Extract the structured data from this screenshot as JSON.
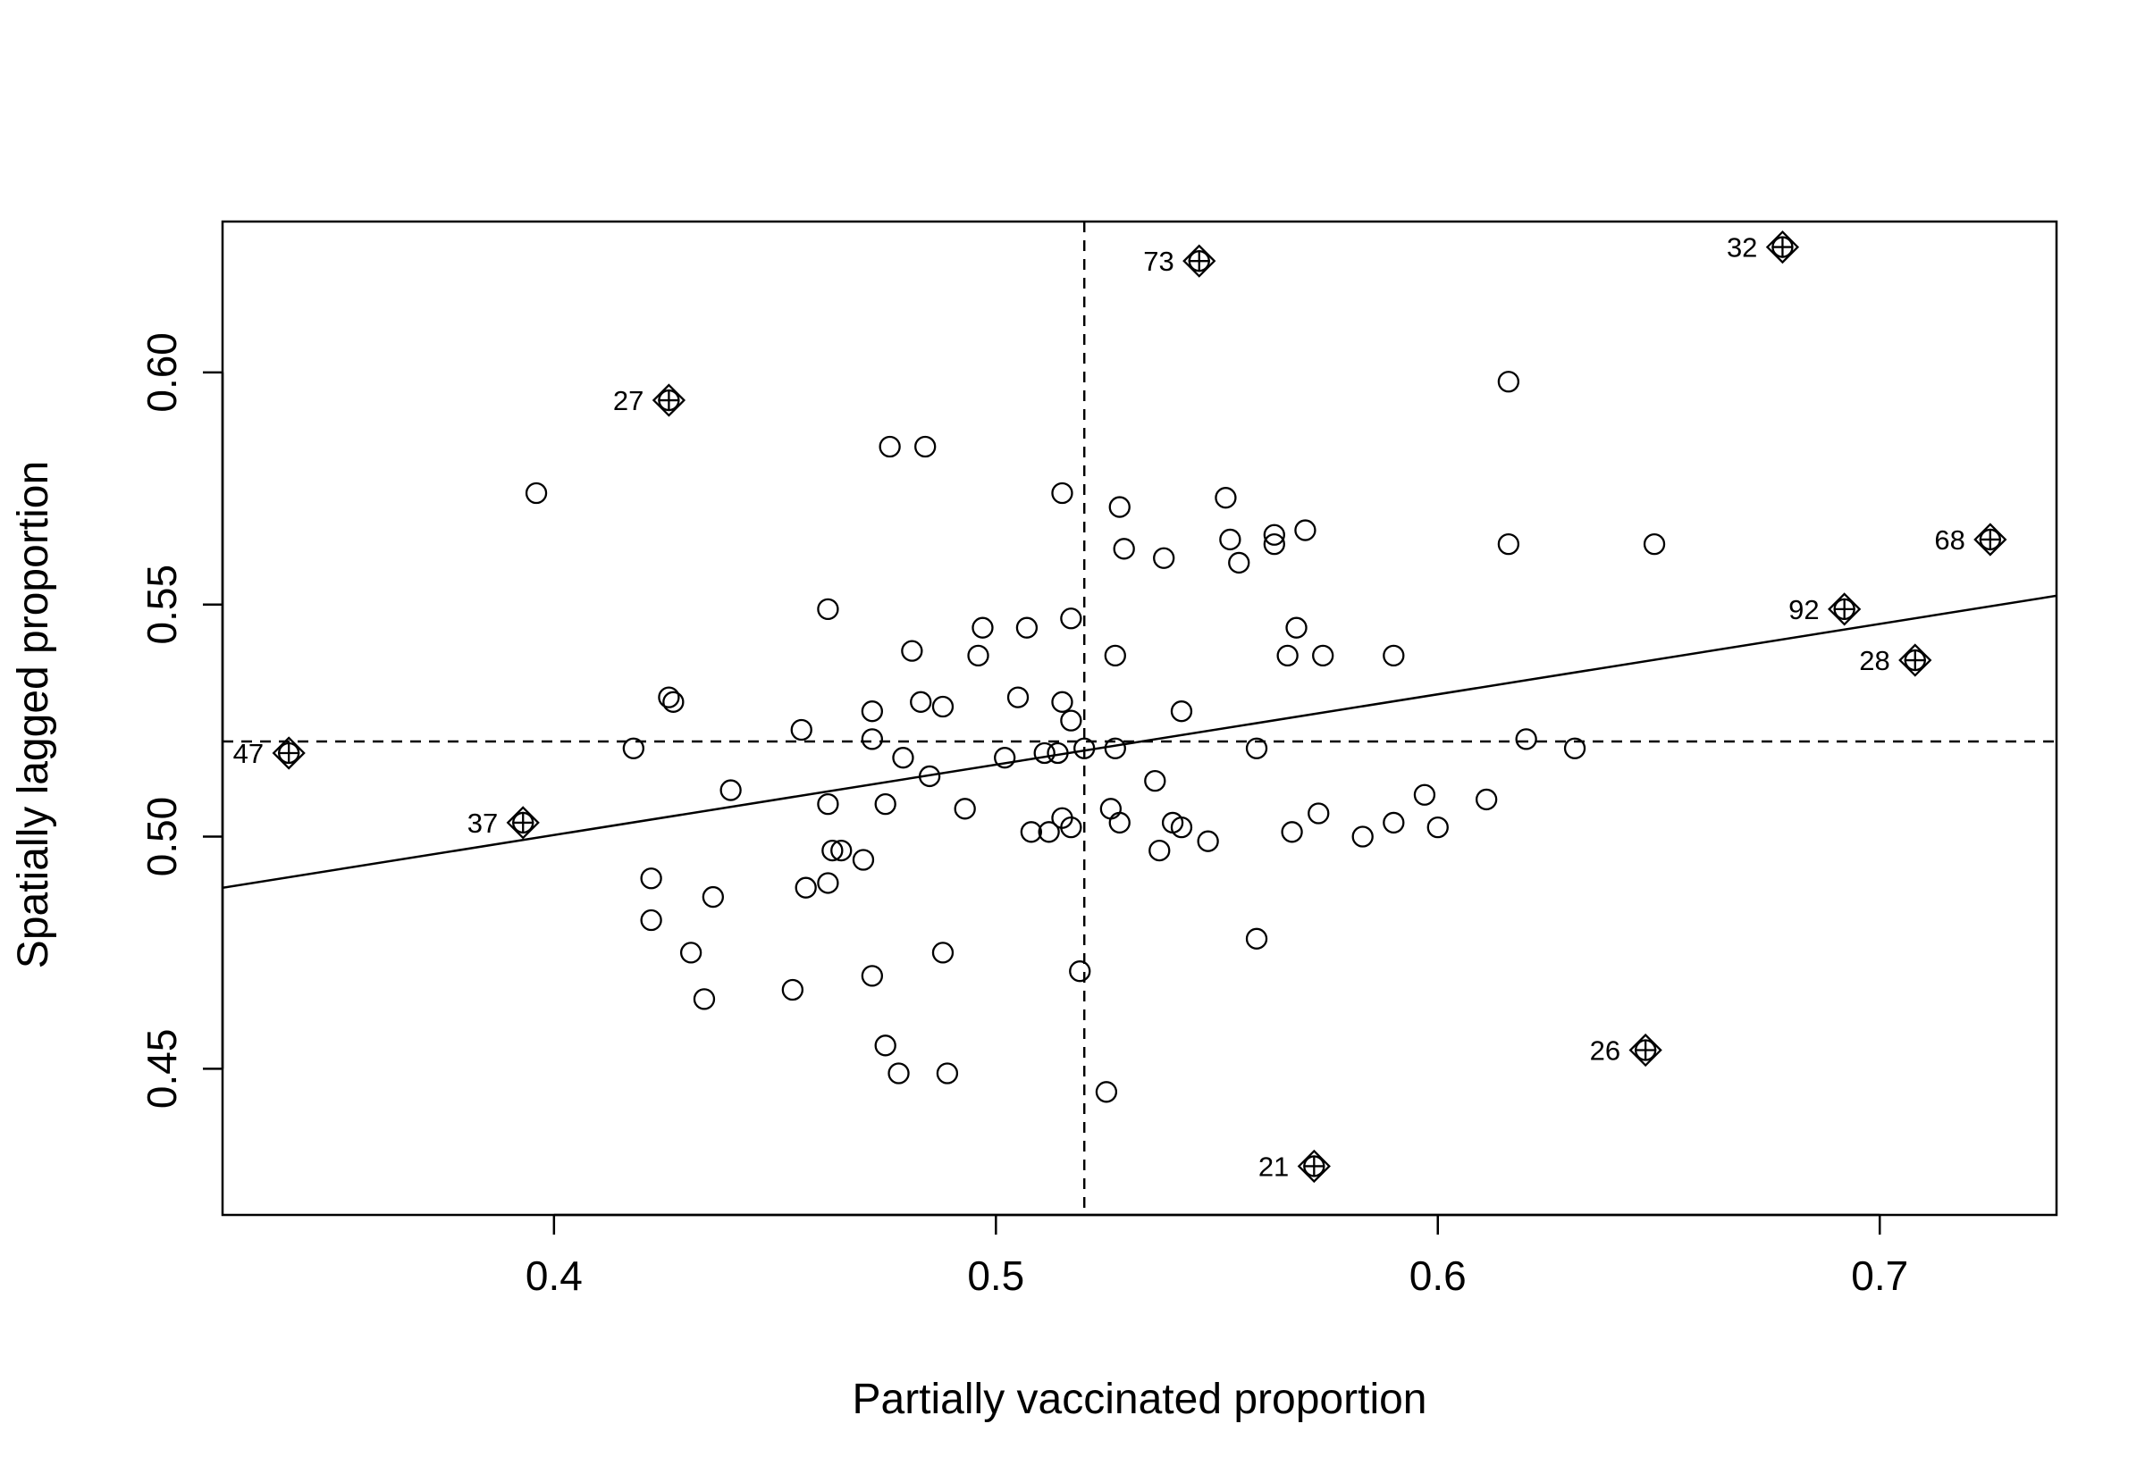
{
  "chart_data": {
    "type": "scatter",
    "title": "",
    "xlabel": "Partially vaccinated proportion",
    "ylabel": "Spatially lagged proportion",
    "xlim": [
      0.325,
      0.74
    ],
    "ylim": [
      0.4185,
      0.6325
    ],
    "x_ticks": [
      0.4,
      0.5,
      0.6,
      0.7
    ],
    "x_tick_labels": [
      "0.4",
      "0.5",
      "0.6",
      "0.7"
    ],
    "y_ticks": [
      0.45,
      0.5,
      0.55,
      0.6
    ],
    "y_tick_labels": [
      "0.45",
      "0.50",
      "0.55",
      "0.60"
    ],
    "mean_x": 0.52,
    "mean_y": 0.5205,
    "regression_line": {
      "intercept": 0.4397,
      "slope": 0.1516
    },
    "grid": false,
    "legend": "none",
    "points": [
      [
        0.396,
        0.574
      ],
      [
        0.462,
        0.549
      ],
      [
        0.426,
        0.53
      ],
      [
        0.427,
        0.529
      ],
      [
        0.418,
        0.519
      ],
      [
        0.456,
        0.523
      ],
      [
        0.472,
        0.527
      ],
      [
        0.472,
        0.521
      ],
      [
        0.481,
        0.54
      ],
      [
        0.483,
        0.529
      ],
      [
        0.488,
        0.528
      ],
      [
        0.496,
        0.539
      ],
      [
        0.497,
        0.545
      ],
      [
        0.479,
        0.517
      ],
      [
        0.476,
        0.584
      ],
      [
        0.484,
        0.584
      ],
      [
        0.505,
        0.53
      ],
      [
        0.507,
        0.545
      ],
      [
        0.502,
        0.517
      ],
      [
        0.511,
        0.518
      ],
      [
        0.514,
        0.518
      ],
      [
        0.515,
        0.529
      ],
      [
        0.517,
        0.525
      ],
      [
        0.517,
        0.547
      ],
      [
        0.515,
        0.574
      ],
      [
        0.52,
        0.519
      ],
      [
        0.527,
        0.539
      ],
      [
        0.528,
        0.571
      ],
      [
        0.529,
        0.562
      ],
      [
        0.527,
        0.519
      ],
      [
        0.538,
        0.56
      ],
      [
        0.542,
        0.527
      ],
      [
        0.552,
        0.573
      ],
      [
        0.553,
        0.564
      ],
      [
        0.555,
        0.559
      ],
      [
        0.563,
        0.565
      ],
      [
        0.563,
        0.563
      ],
      [
        0.57,
        0.566
      ],
      [
        0.568,
        0.545
      ],
      [
        0.566,
        0.539
      ],
      [
        0.574,
        0.539
      ],
      [
        0.59,
        0.539
      ],
      [
        0.559,
        0.519
      ],
      [
        0.616,
        0.598
      ],
      [
        0.616,
        0.563
      ],
      [
        0.649,
        0.563
      ],
      [
        0.62,
        0.521
      ],
      [
        0.631,
        0.519
      ],
      [
        0.44,
        0.51
      ],
      [
        0.462,
        0.507
      ],
      [
        0.463,
        0.497
      ],
      [
        0.465,
        0.497
      ],
      [
        0.462,
        0.49
      ],
      [
        0.457,
        0.489
      ],
      [
        0.47,
        0.495
      ],
      [
        0.475,
        0.507
      ],
      [
        0.485,
        0.513
      ],
      [
        0.493,
        0.506
      ],
      [
        0.422,
        0.491
      ],
      [
        0.436,
        0.487
      ],
      [
        0.422,
        0.482
      ],
      [
        0.431,
        0.475
      ],
      [
        0.434,
        0.465
      ],
      [
        0.454,
        0.467
      ],
      [
        0.472,
        0.47
      ],
      [
        0.488,
        0.475
      ],
      [
        0.475,
        0.455
      ],
      [
        0.478,
        0.449
      ],
      [
        0.489,
        0.449
      ],
      [
        0.508,
        0.501
      ],
      [
        0.512,
        0.501
      ],
      [
        0.515,
        0.504
      ],
      [
        0.517,
        0.502
      ],
      [
        0.519,
        0.471
      ],
      [
        0.525,
        0.445
      ],
      [
        0.526,
        0.506
      ],
      [
        0.528,
        0.503
      ],
      [
        0.536,
        0.512
      ],
      [
        0.54,
        0.503
      ],
      [
        0.542,
        0.502
      ],
      [
        0.537,
        0.497
      ],
      [
        0.548,
        0.499
      ],
      [
        0.559,
        0.478
      ],
      [
        0.567,
        0.501
      ],
      [
        0.573,
        0.505
      ],
      [
        0.583,
        0.5
      ],
      [
        0.59,
        0.503
      ],
      [
        0.597,
        0.509
      ],
      [
        0.6,
        0.502
      ],
      [
        0.611,
        0.508
      ]
    ],
    "influential_points": [
      {
        "label": "73",
        "x": 0.546,
        "y": 0.624
      },
      {
        "label": "32",
        "x": 0.678,
        "y": 0.627
      },
      {
        "label": "27",
        "x": 0.426,
        "y": 0.594
      },
      {
        "label": "68",
        "x": 0.725,
        "y": 0.564
      },
      {
        "label": "92",
        "x": 0.692,
        "y": 0.549
      },
      {
        "label": "28",
        "x": 0.708,
        "y": 0.538
      },
      {
        "label": "47",
        "x": 0.34,
        "y": 0.518
      },
      {
        "label": "37",
        "x": 0.393,
        "y": 0.503
      },
      {
        "label": "26",
        "x": 0.647,
        "y": 0.454
      },
      {
        "label": "21",
        "x": 0.572,
        "y": 0.429
      }
    ]
  }
}
